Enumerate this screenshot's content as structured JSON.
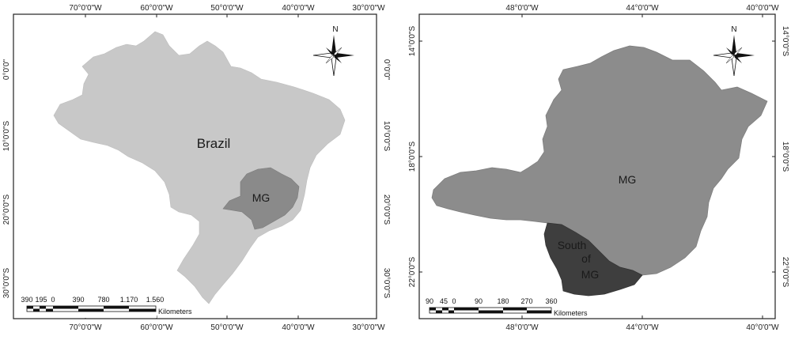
{
  "left_map": {
    "top_ticks": [
      "70°0'0\"W",
      "60°0'0\"W",
      "50°0'0\"W",
      "40°0'0\"W",
      "30°0'0\"W"
    ],
    "bottom_ticks": [
      "70°0'0\"W",
      "60°0'0\"W",
      "50°0'0\"W",
      "40°0'0\"W",
      "30°0'0\"W"
    ],
    "left_ticks": [
      "0°0'0\"",
      "10°0'0\"S",
      "20°0'0\"S",
      "30°0'0\"S"
    ],
    "right_ticks": [
      "0°0'0\"",
      "10°0'0\"S",
      "20°0'0\"S",
      "30°0'0\"S"
    ],
    "country_label": "Brazil",
    "state_label": "MG",
    "north_label": "N",
    "scale_values": [
      "390",
      "195",
      "0",
      "390",
      "780",
      "1.170",
      "1.560"
    ],
    "scale_unit": "Kilometers"
  },
  "right_map": {
    "top_ticks": [
      "48°0'0\"W",
      "44°0'0\"W",
      "40°0'0\"W"
    ],
    "bottom_ticks": [
      "48°0'0\"W",
      "44°0'0\"W",
      "40°0'0\"W"
    ],
    "left_ticks": [
      "14°0'0\"S",
      "18°0'0\"S",
      "22°0'0\"S"
    ],
    "right_ticks": [
      "14°0'0\"S",
      "18°0'0\"S",
      "22°0'0\"S"
    ],
    "state_label": "MG",
    "region_label_lines": [
      "South",
      "of",
      "MG"
    ],
    "north_label": "N",
    "scale_values": [
      "90",
      "45",
      "0",
      "90",
      "180",
      "270",
      "360"
    ],
    "scale_unit": "Kilometers"
  },
  "colors": {
    "country_fill": "#c8c8c8",
    "state_fill": "#8a8a8a",
    "state_fill_large": "#8c8c8c",
    "region_fill": "#3e3e3e"
  }
}
